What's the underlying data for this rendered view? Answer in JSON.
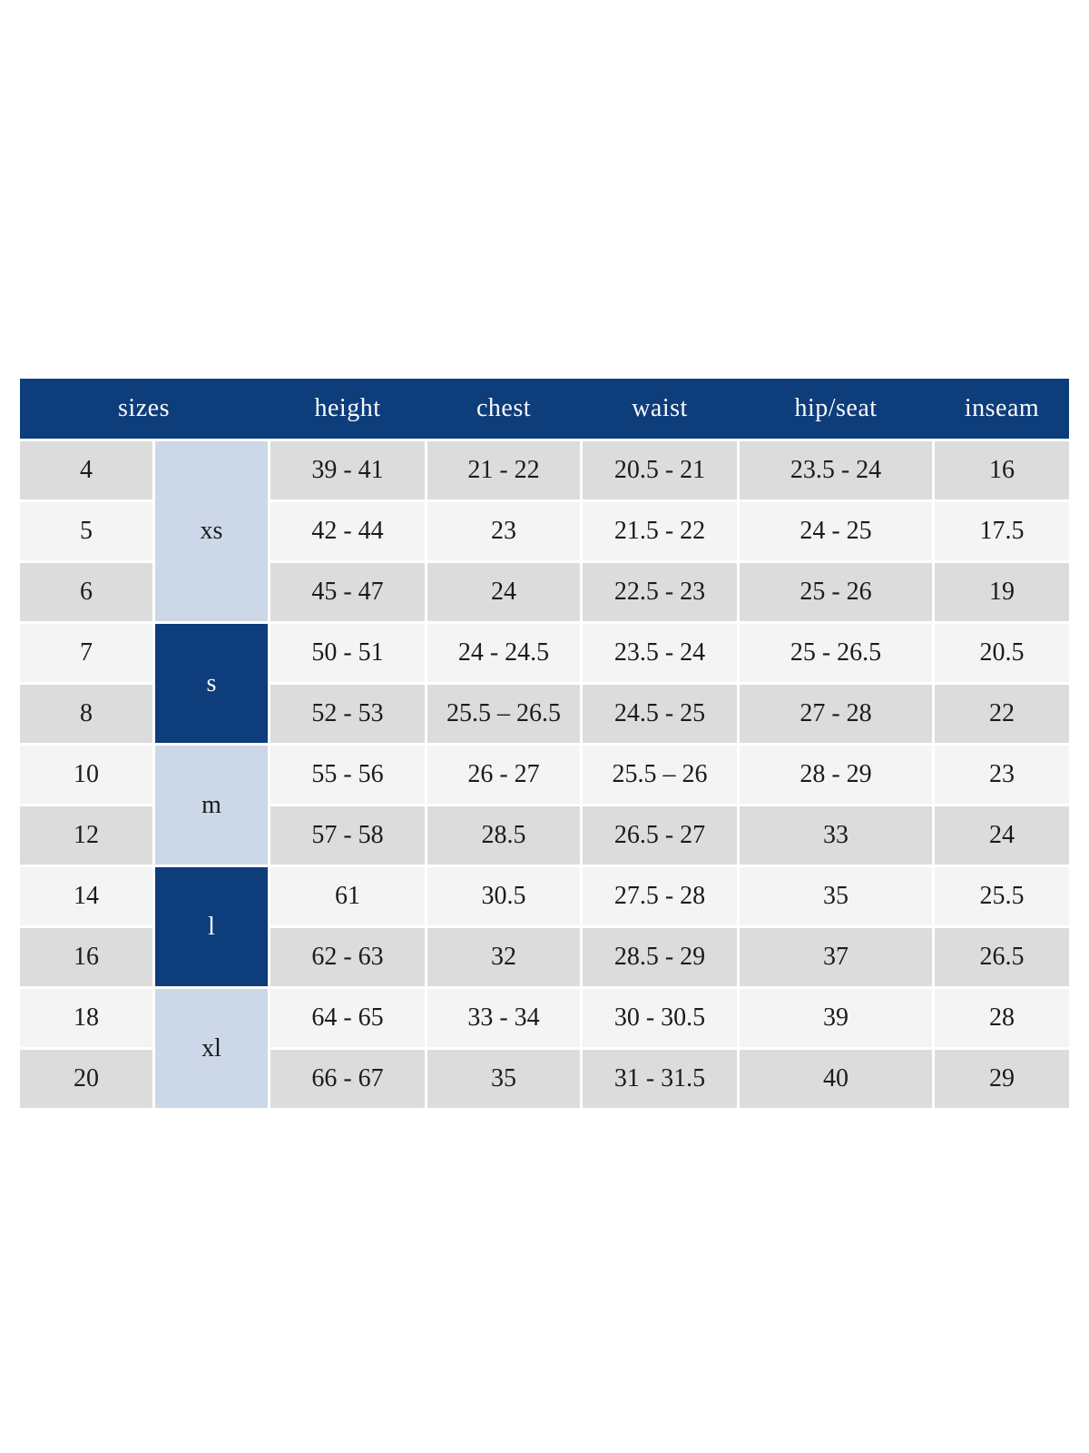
{
  "colors": {
    "header_blue": "#0e3d7c",
    "group_light_blue": "#ccd8e7",
    "row_gray": "#dcdcdc",
    "row_light": "#f4f4f4",
    "header_text": "#fafafa",
    "cell_text": "#1b1b1b",
    "page_background": "#ffffff"
  },
  "chart_data": {
    "type": "table",
    "title": "",
    "columns": [
      "sizes",
      "height",
      "chest",
      "waist",
      "hip/seat",
      "inseam"
    ],
    "size_groups": [
      {
        "label": "xs",
        "rows_spanned": 3,
        "style": "light-blue"
      },
      {
        "label": "s",
        "rows_spanned": 2,
        "style": "dark-blue"
      },
      {
        "label": "m",
        "rows_spanned": 2,
        "style": "light-blue"
      },
      {
        "label": "l",
        "rows_spanned": 2,
        "style": "dark-blue"
      },
      {
        "label": "xl",
        "rows_spanned": 2,
        "style": "light-blue"
      }
    ],
    "rows": [
      {
        "size": "4",
        "height": "39 - 41",
        "chest": "21 - 22",
        "waist": "20.5 - 21",
        "hip_seat": "23.5 - 24",
        "inseam": "16"
      },
      {
        "size": "5",
        "height": "42 - 44",
        "chest": "23",
        "waist": "21.5 - 22",
        "hip_seat": "24 - 25",
        "inseam": "17.5"
      },
      {
        "size": "6",
        "height": "45 - 47",
        "chest": "24",
        "waist": "22.5 - 23",
        "hip_seat": "25 - 26",
        "inseam": "19"
      },
      {
        "size": "7",
        "height": "50 - 51",
        "chest": "24 - 24.5",
        "waist": "23.5 - 24",
        "hip_seat": "25 - 26.5",
        "inseam": "20.5"
      },
      {
        "size": "8",
        "height": "52 - 53",
        "chest": "25.5 – 26.5",
        "waist": "24.5 - 25",
        "hip_seat": "27 - 28",
        "inseam": "22"
      },
      {
        "size": "10",
        "height": "55 - 56",
        "chest": "26 - 27",
        "waist": "25.5 – 26",
        "hip_seat": "28 - 29",
        "inseam": "23"
      },
      {
        "size": "12",
        "height": "57 - 58",
        "chest": "28.5",
        "waist": "26.5 - 27",
        "hip_seat": "33",
        "inseam": "24"
      },
      {
        "size": "14",
        "height": "61",
        "chest": "30.5",
        "waist": "27.5 - 28",
        "hip_seat": "35",
        "inseam": "25.5"
      },
      {
        "size": "16",
        "height": "62 - 63",
        "chest": "32",
        "waist": "28.5 - 29",
        "hip_seat": "37",
        "inseam": "26.5"
      },
      {
        "size": "18",
        "height": "64 - 65",
        "chest": "33 - 34",
        "waist": "30 - 30.5",
        "hip_seat": "39",
        "inseam": "28"
      },
      {
        "size": "20",
        "height": "66 - 67",
        "chest": "35",
        "waist": "31 - 31.5",
        "hip_seat": "40",
        "inseam": "29"
      }
    ]
  }
}
